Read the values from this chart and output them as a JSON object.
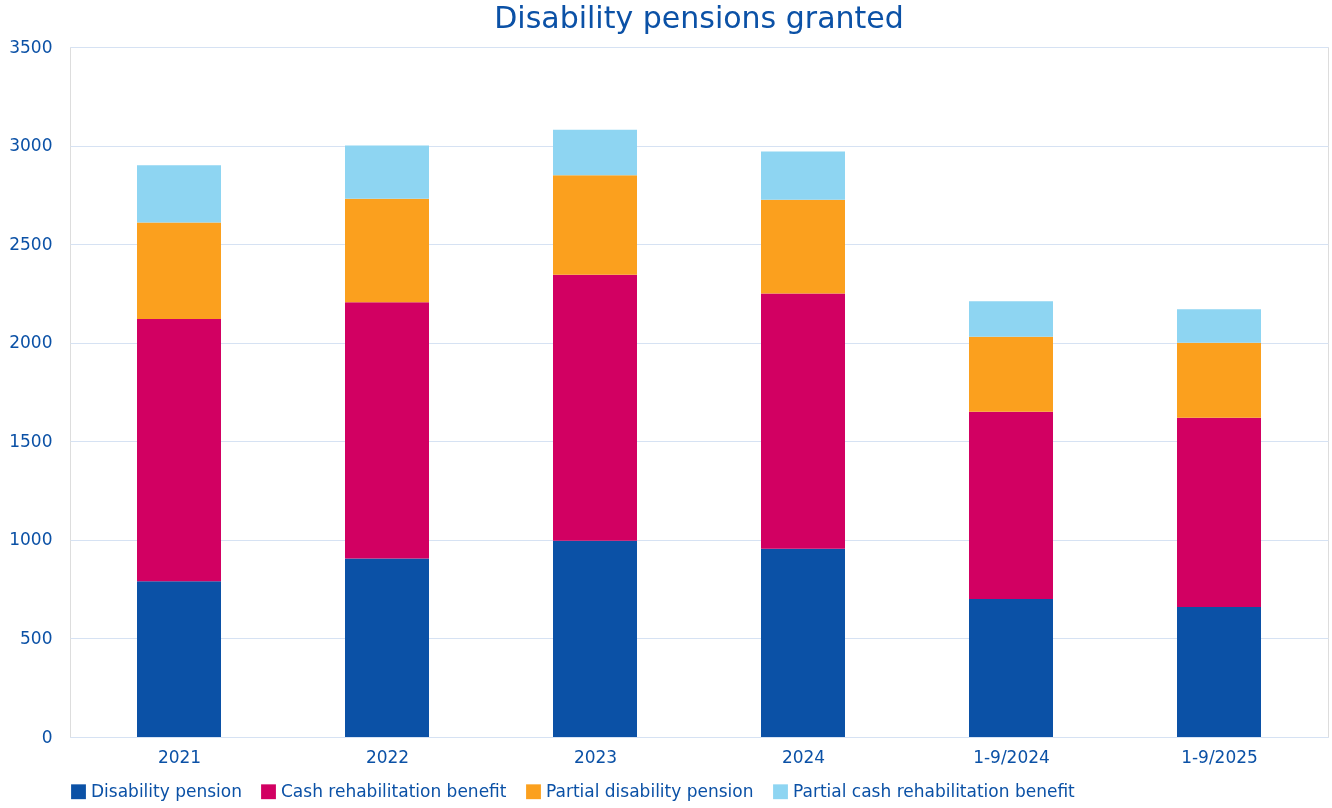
{
  "chart_data": {
    "type": "bar",
    "title": "Disability pensions granted",
    "stacked": true,
    "categories": [
      "2021",
      "2022",
      "2023",
      "2024",
      "1-9/2024",
      "1-9/2025"
    ],
    "series": [
      {
        "name": "Disability pension",
        "color": "#0b51a6",
        "values": [
          790,
          905,
          995,
          955,
          700,
          660
        ]
      },
      {
        "name": "Cash rehabilitation benefit",
        "color": "#d20062",
        "values": [
          1330,
          1300,
          1350,
          1295,
          950,
          960
        ]
      },
      {
        "name": "Partial disability pension",
        "color": "#fba01e",
        "values": [
          490,
          525,
          505,
          475,
          380,
          380
        ]
      },
      {
        "name": "Partial cash rehabilitation benefit",
        "color": "#8ed5f2",
        "values": [
          290,
          270,
          230,
          245,
          180,
          170
        ]
      }
    ],
    "ylim": [
      0,
      3500
    ],
    "yticks": [
      0,
      500,
      1000,
      1500,
      2000,
      2500,
      3000,
      3500
    ],
    "grid": "y",
    "legend": "bottom"
  }
}
